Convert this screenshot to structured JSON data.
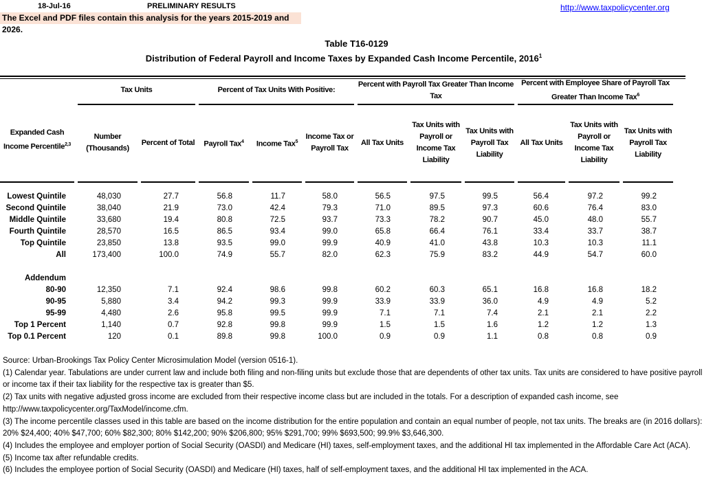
{
  "header": {
    "date": "18-Jul-16",
    "status": "PRELIMINARY RESULTS",
    "url": "http://www.taxpolicycenter.org",
    "note": "The Excel and PDF files contain this analysis for the years 2015-2019 and 2026."
  },
  "title": {
    "number": "Table T16-0129",
    "text": "Distribution of Federal Payroll and Income Taxes by Expanded Cash Income Percentile, 2016",
    "sup": "1"
  },
  "groups": {
    "tax_units": "Tax Units",
    "positive": "Percent of Tax Units With Positive:",
    "payroll_gt": "Percent with Payroll Tax Greater Than Income Tax",
    "employee_gt": "Percent with Employee Share of Payroll Tax Greater Than Income Tax",
    "employee_sup": "6"
  },
  "columns": {
    "label": "Expanded Cash Income Percentile",
    "label_sup": "2,3",
    "number": "Number (Thousands)",
    "pct_total": "Percent of Total",
    "payroll": "Payroll Tax",
    "payroll_sup": "4",
    "income": "Income Tax",
    "income_sup": "5",
    "inc_or_pay": "Income Tax or Payroll Tax",
    "all1": "All Tax Units",
    "pay_or_inc1": "Tax Units with Payroll or Income Tax Liability",
    "pay_liab1": "Tax Units with Payroll Tax Liability",
    "all2": "All Tax Units",
    "pay_or_inc2": "Tax Units with Payroll or Income Tax Liability",
    "pay_liab2": "Tax Units with Payroll Tax Liability"
  },
  "rows": [
    [
      "Lowest Quintile",
      "48,030",
      "27.7",
      "56.8",
      "11.7",
      "58.0",
      "56.5",
      "97.5",
      "99.5",
      "56.4",
      "97.2",
      "99.2"
    ],
    [
      "Second Quintile",
      "38,040",
      "21.9",
      "73.0",
      "42.4",
      "79.3",
      "71.0",
      "89.5",
      "97.3",
      "60.6",
      "76.4",
      "83.0"
    ],
    [
      "Middle Quintile",
      "33,680",
      "19.4",
      "80.8",
      "72.5",
      "93.7",
      "73.3",
      "78.2",
      "90.7",
      "45.0",
      "48.0",
      "55.7"
    ],
    [
      "Fourth Quintile",
      "28,570",
      "16.5",
      "86.5",
      "93.4",
      "99.0",
      "65.8",
      "66.4",
      "76.1",
      "33.4",
      "33.7",
      "38.7"
    ],
    [
      "Top Quintile",
      "23,850",
      "13.8",
      "93.5",
      "99.0",
      "99.9",
      "40.9",
      "41.0",
      "43.8",
      "10.3",
      "10.3",
      "11.1"
    ],
    [
      "All",
      "173,400",
      "100.0",
      "74.9",
      "55.7",
      "82.0",
      "62.3",
      "75.9",
      "83.2",
      "44.9",
      "54.7",
      "60.0"
    ]
  ],
  "addendum_label": "Addendum",
  "addendum": [
    [
      "80-90",
      "12,350",
      "7.1",
      "92.4",
      "98.6",
      "99.8",
      "60.2",
      "60.3",
      "65.1",
      "16.8",
      "16.8",
      "18.2"
    ],
    [
      "90-95",
      "5,880",
      "3.4",
      "94.2",
      "99.3",
      "99.9",
      "33.9",
      "33.9",
      "36.0",
      "4.9",
      "4.9",
      "5.2"
    ],
    [
      "95-99",
      "4,480",
      "2.6",
      "95.8",
      "99.5",
      "99.9",
      "7.1",
      "7.1",
      "7.4",
      "2.1",
      "2.1",
      "2.2"
    ],
    [
      "Top 1 Percent",
      "1,140",
      "0.7",
      "92.8",
      "99.8",
      "99.9",
      "1.5",
      "1.5",
      "1.6",
      "1.2",
      "1.2",
      "1.3"
    ],
    [
      "Top 0.1 Percent",
      "120",
      "0.1",
      "89.8",
      "99.8",
      "100.0",
      "0.9",
      "0.9",
      "1.1",
      "0.8",
      "0.8",
      "0.9"
    ]
  ],
  "notes": [
    "Source: Urban-Brookings Tax Policy Center Microsimulation Model (version 0516-1).",
    "(1) Calendar year. Tabulations are under current law and include both filing and non-filing units but exclude those that are dependents of other tax units.  Tax units are considered to have positive payroll or income tax if their tax liability for the respective tax is greater than $5.",
    "(2) Tax units with negative adjusted gross income are excluded from their respective income class but are included in the totals. For a description of expanded cash income, see http://www.taxpolicycenter.org/TaxModel/income.cfm.",
    "(3) The income percentile classes used in this table are based on the income distribution for the entire population and contain an equal number of people, not tax units. The breaks are (in 2016 dollars): 20% $24,400; 40% $47,700; 60% $82,300; 80% $142,200; 90% $206,800; 95% $291,700; 99% $693,500; 99.9% $3,646,300.",
    "(4) Includes the employee and employer portion of Social Security (OASDI) and Medicare (HI) taxes, self-employment taxes, and the additional HI tax implemented in the Affordable Care Act (ACA).",
    "(5) Income tax after refundable credits.",
    "(6) Includes the employee portion of Social Security (OASDI) and Medicare (HI) taxes, half of self-employment taxes, and the additional HI tax implemented in the ACA."
  ]
}
